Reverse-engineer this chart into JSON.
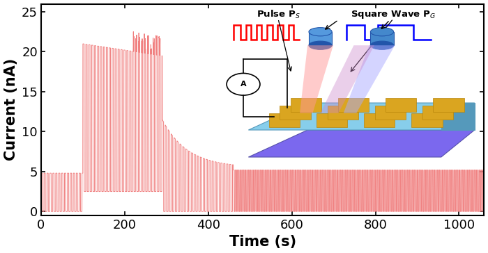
{
  "xlim": [
    0,
    1060
  ],
  "ylim": [
    -0.5,
    26
  ],
  "yticks": [
    0,
    5,
    10,
    15,
    20,
    25
  ],
  "xticks": [
    0,
    200,
    400,
    600,
    800,
    1000
  ],
  "xlabel": "Time (s)",
  "ylabel": "Current (nA)",
  "line_color": "#F08080",
  "line_width": 0.7,
  "phase1_start": 0,
  "phase1_end": 100,
  "phase1_baseline": 0,
  "phase1_peak": 4.8,
  "phase1_period": 7,
  "phase2_start": 100,
  "phase2_end": 290,
  "phase2_baseline": 2.5,
  "phase2_peak_start": 21.0,
  "phase2_peak_end": 19.5,
  "phase2_period": 7,
  "phase3_start": 290,
  "phase3_end": 460,
  "phase3_baseline": 0,
  "phase3_peak_start": 11.5,
  "phase3_peak_end": 5.5,
  "phase3_period": 7,
  "phase4_start": 460,
  "phase4_end": 1060,
  "phase4_baseline": 0,
  "phase4_peak": 5.2,
  "phase4_period": 4,
  "tick_fontsize": 13,
  "label_fontsize": 15,
  "bg_color": "#ffffff",
  "fig_width": 7.0,
  "fig_height": 3.64,
  "fig_dpi": 100
}
